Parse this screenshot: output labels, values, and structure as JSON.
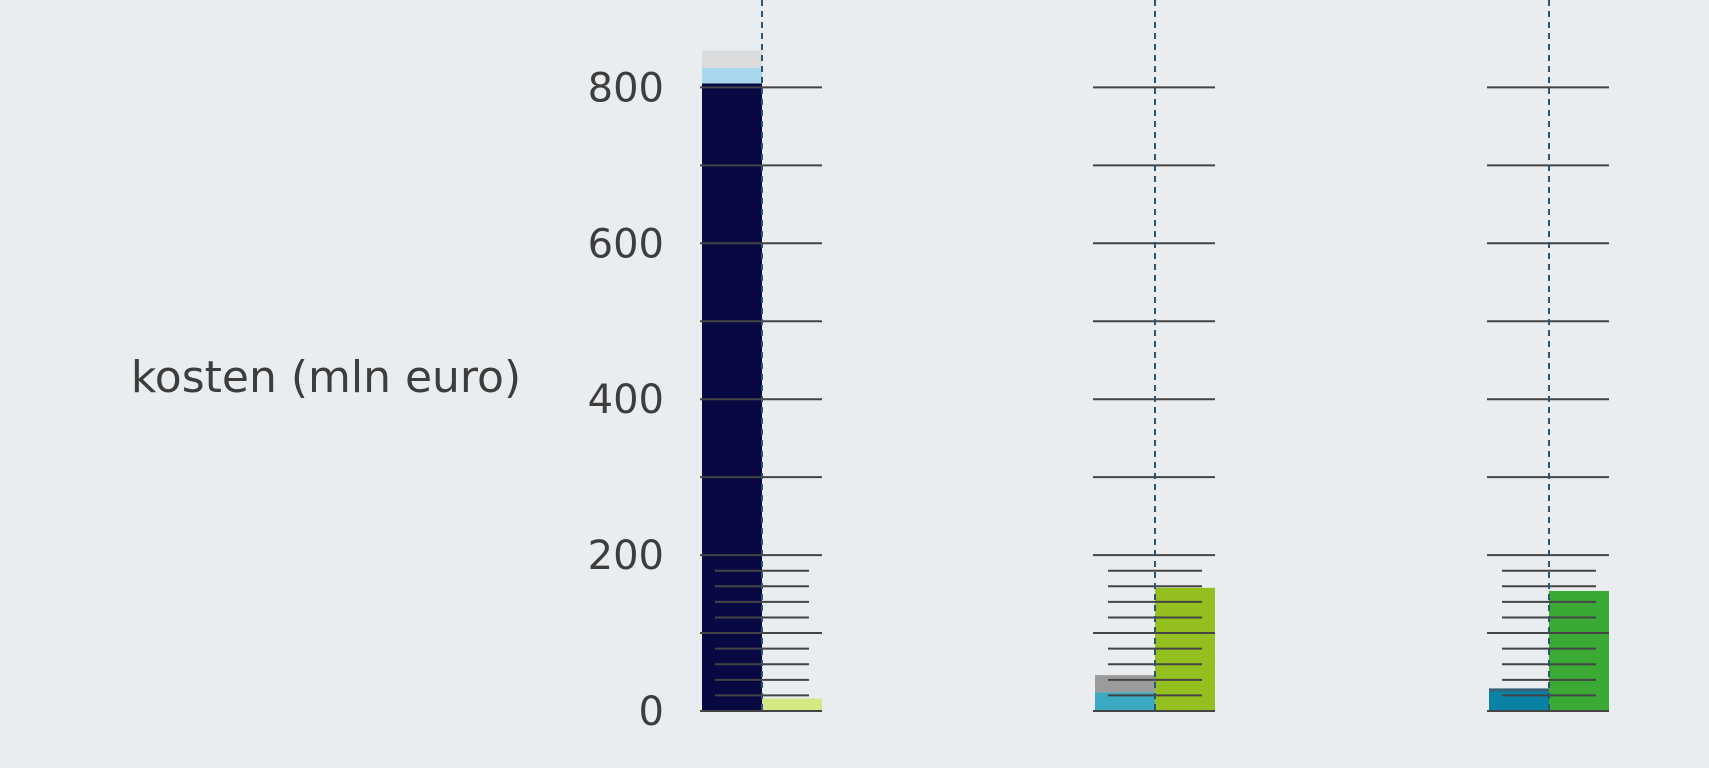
{
  "chart_data": {
    "type": "bar",
    "ylabel": "kosten (mln euro)",
    "yticks": [
      0,
      200,
      400,
      600,
      800
    ],
    "ylim": [
      0,
      900
    ],
    "grid": false,
    "groups": [
      {
        "left_stack": [
          {
            "value": 805,
            "color": "#080843"
          },
          {
            "value": 20,
            "color": "#a9d8ee"
          },
          {
            "value": 22,
            "color": "#d9dbdd"
          }
        ],
        "right_stack": [
          {
            "value": 16,
            "color": "#d4e884"
          }
        ]
      },
      {
        "left_stack": [
          {
            "value": 24,
            "color": "#3aa9c1"
          },
          {
            "value": 22,
            "color": "#9b9b9b"
          }
        ],
        "right_stack": [
          {
            "value": 158,
            "color": "#93c01f"
          }
        ]
      },
      {
        "left_stack": [
          {
            "value": 25,
            "color": "#0982a5"
          },
          {
            "value": 4,
            "color": "#36627a"
          }
        ],
        "right_stack": [
          {
            "value": 154,
            "color": "#3aaa35"
          }
        ]
      }
    ]
  }
}
